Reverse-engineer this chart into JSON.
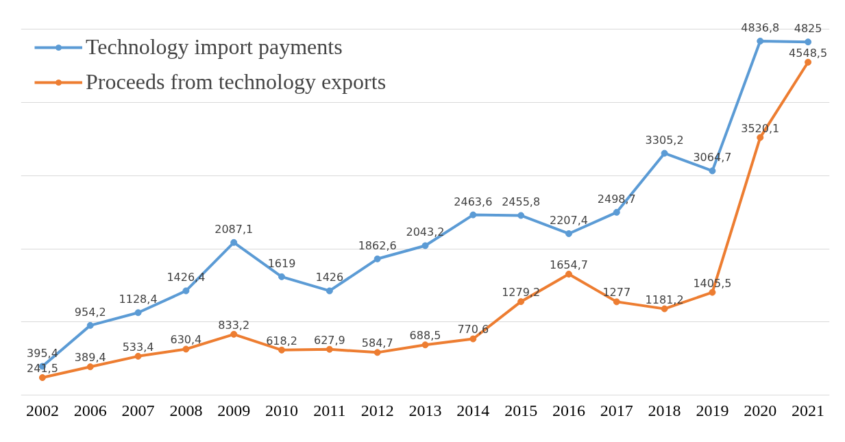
{
  "chart_data": {
    "type": "line",
    "categories": [
      "2002",
      "2006",
      "2007",
      "2008",
      "2009",
      "2010",
      "2011",
      "2012",
      "2013",
      "2014",
      "2015",
      "2016",
      "2017",
      "2018",
      "2019",
      "2020",
      "2021"
    ],
    "series": [
      {
        "name": "Technology import payments",
        "color": "#5b9bd5",
        "values": [
          395.4,
          954.2,
          1128.4,
          1426.4,
          2087.1,
          1619,
          1426,
          1862.6,
          2043.2,
          2463.6,
          2455.8,
          2207.4,
          2498.7,
          3305.2,
          3064.7,
          4836.8,
          4825
        ],
        "value_labels": [
          "395,4",
          "954,2",
          "1128,4",
          "1426,4",
          "2087,1",
          "1619",
          "1426",
          "1862,6",
          "2043,2",
          "2463,6",
          "2455,8",
          "2207,4",
          "2498,7",
          "3305,2",
          "3064,7",
          "4836,8",
          "4825"
        ]
      },
      {
        "name": "Proceeds from technology exports",
        "color": "#ed7d31",
        "values": [
          241.5,
          389.4,
          533.4,
          630.4,
          833.2,
          618.2,
          627.9,
          584.7,
          688.5,
          770.6,
          1279.2,
          1654.7,
          1277,
          1181.2,
          1405.5,
          3520.1,
          4548.5
        ],
        "value_labels": [
          "241,5",
          "389,4",
          "533,4",
          "630,4",
          "833,2",
          "618,2",
          "627,9",
          "584,7",
          "688,5",
          "770,6",
          "1279,2",
          "1654,7",
          "1277",
          "1181,2",
          "1405,5",
          "3520,1",
          "4548,5"
        ]
      }
    ],
    "tick_labels": "x",
    "grid": "y",
    "legend": "top left",
    "marker": "circle",
    "line_style": "solid"
  }
}
